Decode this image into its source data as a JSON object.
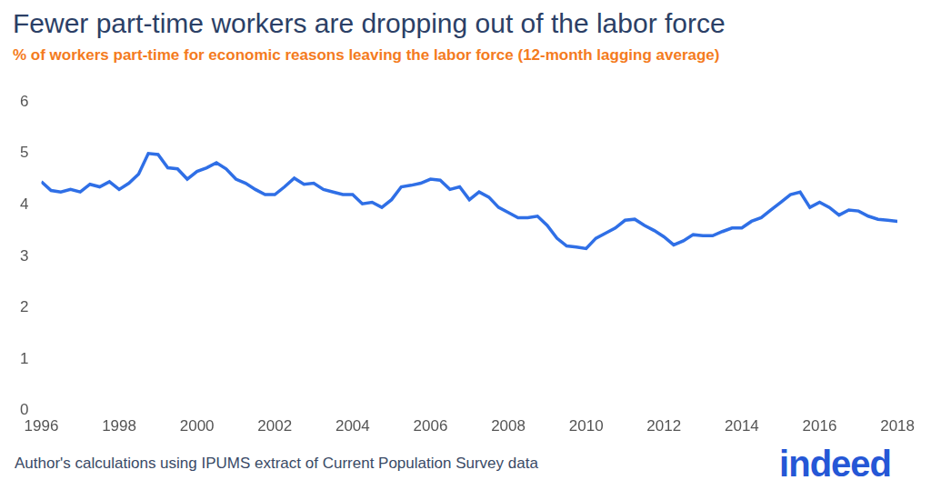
{
  "chart_data": {
    "type": "line",
    "title": "Fewer part-time workers are dropping out of the labor force",
    "subtitle": "% of workers part-time for economic reasons leaving the labor force (12-month lagging average)",
    "source": "Author's calculations using IPUMS extract of Current Population Survey data",
    "logo": "indeed",
    "x": [
      1996,
      1996.25,
      1996.5,
      1996.75,
      1997,
      1997.25,
      1997.5,
      1997.75,
      1998,
      1998.25,
      1998.5,
      1998.75,
      1999,
      1999.25,
      1999.5,
      1999.75,
      2000,
      2000.25,
      2000.5,
      2000.75,
      2001,
      2001.25,
      2001.5,
      2001.75,
      2002,
      2002.25,
      2002.5,
      2002.75,
      2003,
      2003.25,
      2003.5,
      2003.75,
      2004,
      2004.25,
      2004.5,
      2004.75,
      2005,
      2005.25,
      2005.5,
      2005.75,
      2006,
      2006.25,
      2006.5,
      2006.75,
      2007,
      2007.25,
      2007.5,
      2007.75,
      2008,
      2008.25,
      2008.5,
      2008.75,
      2009,
      2009.25,
      2009.5,
      2009.75,
      2010,
      2010.25,
      2010.5,
      2010.75,
      2011,
      2011.25,
      2011.5,
      2011.75,
      2012,
      2012.25,
      2012.5,
      2012.75,
      2013,
      2013.25,
      2013.5,
      2013.75,
      2014,
      2014.25,
      2014.5,
      2014.75,
      2015,
      2015.25,
      2015.5,
      2015.75,
      2016,
      2016.25,
      2016.5,
      2016.75,
      2017,
      2017.25,
      2017.5,
      2017.75,
      2018
    ],
    "values": [
      4.45,
      4.28,
      4.25,
      4.3,
      4.25,
      4.4,
      4.35,
      4.45,
      4.3,
      4.42,
      4.6,
      5.0,
      4.98,
      4.72,
      4.7,
      4.5,
      4.65,
      4.72,
      4.82,
      4.7,
      4.5,
      4.42,
      4.3,
      4.2,
      4.2,
      4.35,
      4.52,
      4.4,
      4.42,
      4.3,
      4.25,
      4.2,
      4.2,
      4.02,
      4.05,
      3.95,
      4.1,
      4.35,
      4.38,
      4.42,
      4.5,
      4.48,
      4.3,
      4.35,
      4.1,
      4.25,
      4.15,
      3.95,
      3.85,
      3.75,
      3.75,
      3.78,
      3.6,
      3.35,
      3.2,
      3.18,
      3.15,
      3.35,
      3.45,
      3.55,
      3.7,
      3.72,
      3.6,
      3.5,
      3.38,
      3.22,
      3.3,
      3.42,
      3.4,
      3.4,
      3.48,
      3.55,
      3.55,
      3.68,
      3.75,
      3.9,
      4.05,
      4.2,
      4.25,
      3.95,
      4.05,
      3.95,
      3.8,
      3.9,
      3.88,
      3.78,
      3.72,
      3.7,
      3.68
    ],
    "color": "#2f6fe6",
    "xlim": [
      1996,
      2018
    ],
    "xticks": [
      1996,
      1998,
      2000,
      2002,
      2004,
      2006,
      2008,
      2010,
      2012,
      2014,
      2016,
      2018
    ],
    "ylim": [
      0,
      6
    ],
    "yticks": [
      0,
      1,
      2,
      3,
      4,
      5,
      6
    ],
    "grid": false
  }
}
